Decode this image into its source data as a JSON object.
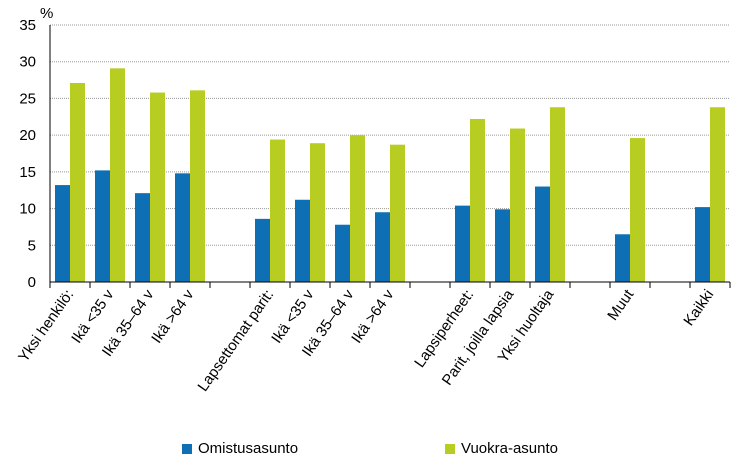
{
  "chart_data": {
    "type": "bar",
    "ylabel": "%",
    "ylim": [
      0,
      35
    ],
    "yticks": [
      0,
      5,
      10,
      15,
      20,
      25,
      30,
      35
    ],
    "grid": true,
    "legend_position": "bottom",
    "categories": [
      "Yksi henkilö:",
      "Ikä <35 v",
      "Ikä 35–64 v",
      "Ikä >64 v",
      "Lapsettomat parit:",
      "Ikä <35 v",
      "Ikä 35–64 v",
      "Ikä >64 v",
      "Lapsiperheet:",
      "Parit, joilla lapsia",
      "Yksi huoltaja",
      "Muut",
      "Kaikki"
    ],
    "groups": [
      [
        0,
        1,
        2,
        3
      ],
      [
        4,
        5,
        6,
        7
      ],
      [
        8,
        9,
        10
      ],
      [
        11
      ],
      [
        12
      ]
    ],
    "series": [
      {
        "name": "Omistusasunto",
        "color": "#0f6fb4",
        "values": [
          13.2,
          15.2,
          12.1,
          14.8,
          8.6,
          11.2,
          7.8,
          9.5,
          10.4,
          9.9,
          13.0,
          6.5,
          10.2
        ]
      },
      {
        "name": "Vuokra-asunto",
        "color": "#b7cd22",
        "values": [
          27.1,
          29.1,
          25.8,
          26.1,
          19.4,
          18.9,
          20.0,
          18.7,
          22.2,
          20.9,
          23.8,
          19.6,
          23.8
        ]
      }
    ]
  }
}
